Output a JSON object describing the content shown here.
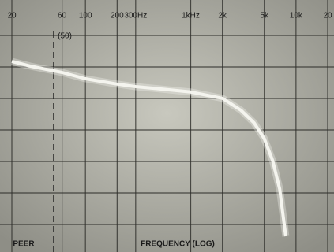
{
  "chart_data": {
    "type": "line",
    "xlabel": "FREQUENCY (LOG)",
    "annotations": [
      {
        "text": "(50)",
        "x": 50
      },
      {
        "text": "PEER",
        "x": 20
      }
    ],
    "log_x": true,
    "xlim": [
      20,
      20000
    ],
    "xticks": [
      20,
      60,
      100,
      200,
      {
        "value": 300,
        "label": "300Hz"
      },
      {
        "value": 1000,
        "label": "1kHz"
      },
      {
        "value": 2000,
        "label": "2k"
      },
      {
        "value": 5000,
        "label": "5k"
      },
      {
        "value": 10000,
        "label": "10k"
      },
      {
        "value": 20000,
        "label": "20"
      }
    ],
    "ylim": [
      0,
      8
    ],
    "grid": true,
    "series": [
      {
        "color": "#f4f4ee",
        "x": [
          20,
          30,
          60,
          100,
          200,
          300,
          500,
          1000,
          2000,
          3000,
          4000,
          5000,
          6000,
          7000,
          8000
        ],
        "values": [
          6.05,
          5.9,
          5.7,
          5.5,
          5.33,
          5.25,
          5.18,
          5.08,
          4.88,
          4.5,
          4.1,
          3.6,
          2.9,
          2.0,
          0.5
        ]
      }
    ]
  }
}
